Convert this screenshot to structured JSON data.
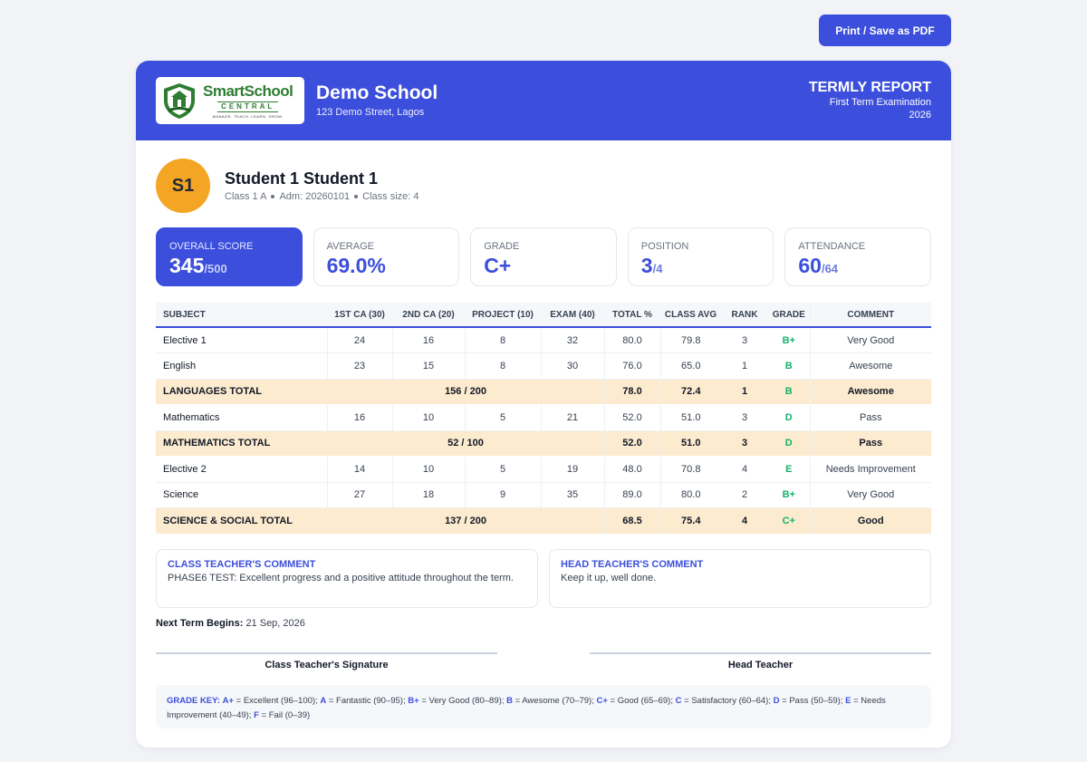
{
  "toolbar": {
    "print_label": "Print / Save as PDF"
  },
  "header": {
    "logo": {
      "name": "SmartSchool",
      "central": "CENTRAL",
      "tagline": "MANAGE. TEACH. LEARN. GROW."
    },
    "school_name": "Demo School",
    "school_address": "123 Demo Street, Lagos",
    "report_title": "TERMLY REPORT",
    "report_exam": "First Term Examination",
    "report_year": "2026"
  },
  "student": {
    "initials": "S1",
    "name": "Student 1 Student 1",
    "class": "Class 1 A",
    "adm": "Adm: 20260101",
    "class_size": "Class size: 4"
  },
  "stats": [
    {
      "label": "OVERALL SCORE",
      "value": "345",
      "unit": "/500"
    },
    {
      "label": "AVERAGE",
      "value": "69.0%",
      "unit": ""
    },
    {
      "label": "GRADE",
      "value": "C+",
      "unit": ""
    },
    {
      "label": "POSITION",
      "value": "3",
      "unit": "/4"
    },
    {
      "label": "ATTENDANCE",
      "value": "60",
      "unit": "/64"
    }
  ],
  "colors": {
    "accent": "#3c4fdc",
    "avatar": "#f5a524",
    "total_row": "#fdebcf",
    "grade": "#16b16e"
  },
  "table": {
    "headers": [
      "SUBJECT",
      "1ST CA (30)",
      "2ND CA (20)",
      "PROJECT (10)",
      "EXAM (40)",
      "TOTAL %",
      "CLASS AVG",
      "RANK",
      "GRADE",
      "COMMENT"
    ],
    "rows": [
      {
        "type": "subject",
        "cells": [
          "Elective 1",
          "24",
          "16",
          "8",
          "32",
          "80.0",
          "79.8",
          "3",
          "B+",
          "Very Good"
        ]
      },
      {
        "type": "subject",
        "cells": [
          "English",
          "23",
          "15",
          "8",
          "30",
          "76.0",
          "65.0",
          "1",
          "B",
          "Awesome"
        ]
      },
      {
        "type": "total",
        "cells": [
          "LANGUAGES TOTAL",
          "156 / 200",
          "78.0",
          "72.4",
          "1",
          "B",
          "Awesome"
        ]
      },
      {
        "type": "subject",
        "cells": [
          "Mathematics",
          "16",
          "10",
          "5",
          "21",
          "52.0",
          "51.0",
          "3",
          "D",
          "Pass"
        ]
      },
      {
        "type": "total",
        "cells": [
          "MATHEMATICS TOTAL",
          "52 / 100",
          "52.0",
          "51.0",
          "3",
          "D",
          "Pass"
        ]
      },
      {
        "type": "subject",
        "cells": [
          "Elective 2",
          "14",
          "10",
          "5",
          "19",
          "48.0",
          "70.8",
          "4",
          "E",
          "Needs Improvement"
        ]
      },
      {
        "type": "subject",
        "cells": [
          "Science",
          "27",
          "18",
          "9",
          "35",
          "89.0",
          "80.0",
          "2",
          "B+",
          "Very Good"
        ]
      },
      {
        "type": "total",
        "cells": [
          "SCIENCE & SOCIAL TOTAL",
          "137 / 200",
          "68.5",
          "75.4",
          "4",
          "C+",
          "Good"
        ]
      }
    ]
  },
  "comments": {
    "class_teacher_title": "CLASS TEACHER'S COMMENT",
    "class_teacher_text": "PHASE6 TEST: Excellent progress and a positive attitude throughout the term.",
    "head_teacher_title": "HEAD TEACHER'S COMMENT",
    "head_teacher_text": "Keep it up, well done."
  },
  "next_term": {
    "label": "Next Term Begins:",
    "value": "21 Sep, 2026"
  },
  "signatures": {
    "class_teacher": "Class Teacher's Signature",
    "head_teacher": "Head Teacher"
  },
  "grade_key": {
    "label": "GRADE KEY:",
    "items": [
      {
        "grade": "A+",
        "desc": "= Excellent (96–100);"
      },
      {
        "grade": "A",
        "desc": "= Fantastic (90–95);"
      },
      {
        "grade": "B+",
        "desc": "= Very Good (80–89);"
      },
      {
        "grade": "B",
        "desc": "= Awesome (70–79);"
      },
      {
        "grade": "C+",
        "desc": "= Good (65–69);"
      },
      {
        "grade": "C",
        "desc": "= Satisfactory (60–64);"
      },
      {
        "grade": "D",
        "desc": "= Pass (50–59);"
      },
      {
        "grade": "E",
        "desc": "= Needs Improvement (40–49);"
      },
      {
        "grade": "F",
        "desc": "= Fail (0–39)"
      }
    ]
  }
}
